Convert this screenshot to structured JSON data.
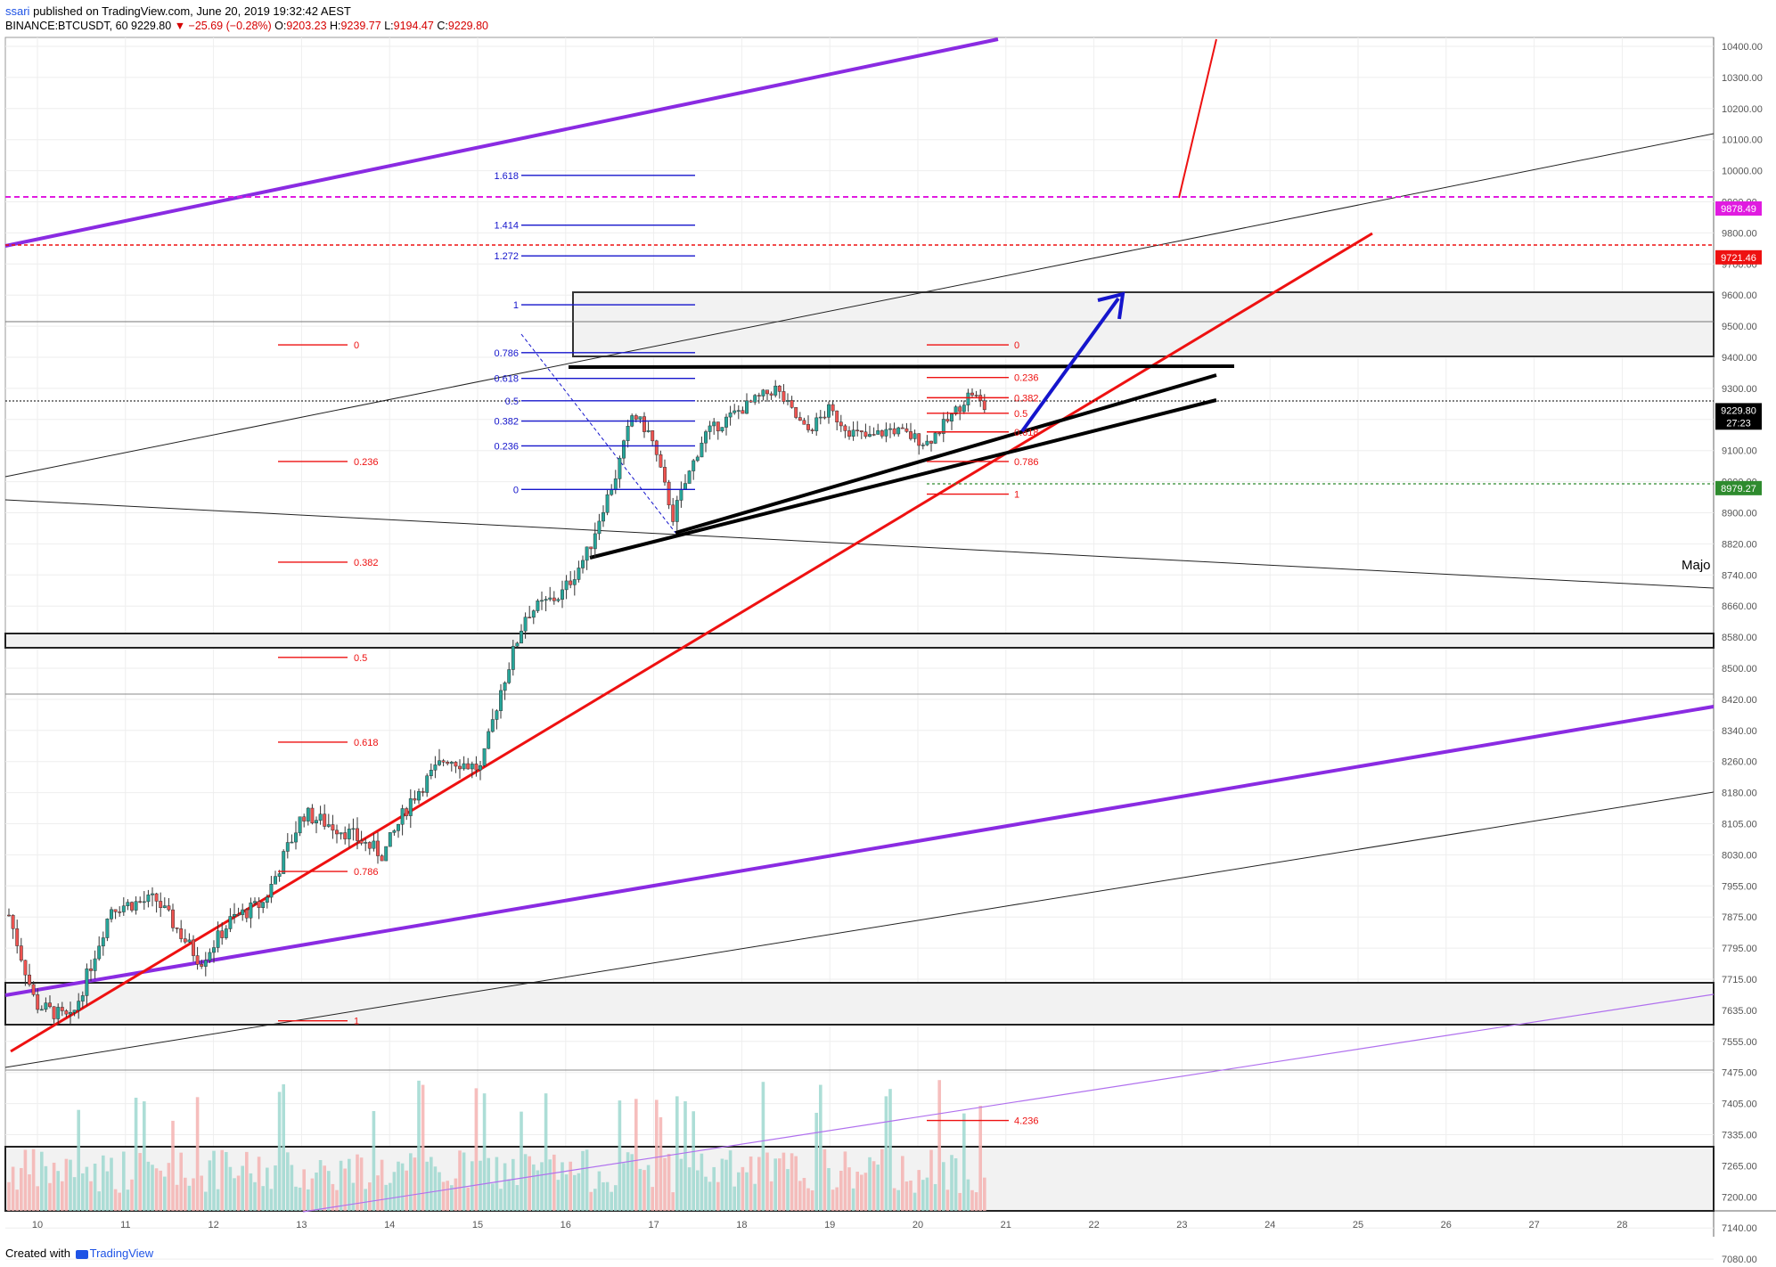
{
  "header": {
    "publisher": "ssari",
    "published_text": "published on TradingView.com, June 20, 2019 19:32:42 AEST",
    "symbol": "BINANCE:BTCUSDT, 60",
    "last": "9229.80",
    "change_arrow": "▼",
    "change": "−25.69 (−0.28%)",
    "open_label": "O:",
    "open": "9203.23",
    "high_label": "H:",
    "high": "9239.77",
    "low_label": "L:",
    "low": "9194.47",
    "close_label": "C:",
    "close": "9229.80"
  },
  "footer": {
    "created_with": "Created with",
    "brand": "TradingView"
  },
  "colors": {
    "bull": "#26a69a",
    "bear": "#ef5350",
    "purple": "#8a2be2",
    "red": "#ee1111",
    "blue": "#1515cc",
    "magenta": "#e01be0",
    "green": "#2e8b2e"
  },
  "chart_data": {
    "type": "candlestick",
    "symbol": "BINANCE:BTCUSDT",
    "interval": "60",
    "y_axis_ticks": [
      "10400.00",
      "10300.00",
      "10200.00",
      "10100.00",
      "10000.00",
      "9900.00",
      "9800.00",
      "9700.00",
      "9600.00",
      "9500.00",
      "9400.00",
      "9300.00",
      "9200.00",
      "9100.00",
      "9000.00",
      "8900.00",
      "8820.00",
      "8740.00",
      "8660.00",
      "8580.00",
      "8500.00",
      "8420.00",
      "8340.00",
      "8260.00",
      "8180.00",
      "8105.00",
      "8030.00",
      "7955.00",
      "7875.00",
      "7795.00",
      "7715.00",
      "7635.00",
      "7555.00",
      "7475.00",
      "7405.00",
      "7335.00",
      "7265.00",
      "7200.00",
      "7140.00",
      "7080.00"
    ],
    "x_axis_ticks": [
      "10",
      "11",
      "12",
      "13",
      "14",
      "15",
      "16",
      "17",
      "18",
      "19",
      "20",
      "21",
      "22",
      "23",
      "24",
      "25",
      "26",
      "27",
      "28"
    ],
    "price_labels": [
      {
        "text": "9878.49",
        "value": 9878.49,
        "color": "#e01be0"
      },
      {
        "text": "9721.46",
        "value": 9721.46,
        "color": "#ee1111"
      },
      {
        "text": "9229.80",
        "value": 9229.8,
        "color": "#000000"
      },
      {
        "text": "27:23",
        "value": 9190,
        "color": "#000000"
      },
      {
        "text": "8979.27",
        "value": 8979.27,
        "color": "#2e8b2e"
      }
    ],
    "fib_blue": [
      {
        "label": "1.618",
        "value": 9985
      },
      {
        "label": "1.414",
        "value": 9825
      },
      {
        "label": "1.272",
        "value": 9726
      },
      {
        "label": "1",
        "value": 9569
      },
      {
        "label": "0.786",
        "value": 9415
      },
      {
        "label": "0.618",
        "value": 9332
      },
      {
        "label": "0.5",
        "value": 9260
      },
      {
        "label": "0.382",
        "value": 9195
      },
      {
        "label": "0.236",
        "value": 9115
      },
      {
        "label": "0",
        "value": 8975
      }
    ],
    "fib_red_left": [
      {
        "label": "0",
        "value": 9440
      },
      {
        "label": "0.236",
        "value": 9065
      },
      {
        "label": "0.382",
        "value": 8773
      },
      {
        "label": "0.5",
        "value": 8528
      },
      {
        "label": "0.618",
        "value": 8310
      },
      {
        "label": "0.786",
        "value": 7990
      },
      {
        "label": "1",
        "value": 7608
      }
    ],
    "fib_red_right": [
      {
        "label": "0",
        "value": 9440
      },
      {
        "label": "0.236",
        "value": 9335
      },
      {
        "label": "0.382",
        "value": 9270
      },
      {
        "label": "0.5",
        "value": 9220
      },
      {
        "label": "0.618",
        "value": 9160
      },
      {
        "label": "0.786",
        "value": 9065
      },
      {
        "label": "1",
        "value": 8960
      },
      {
        "label": "4.236",
        "value": 7367
      }
    ],
    "annotations": [
      {
        "text": "Majo"
      }
    ]
  }
}
